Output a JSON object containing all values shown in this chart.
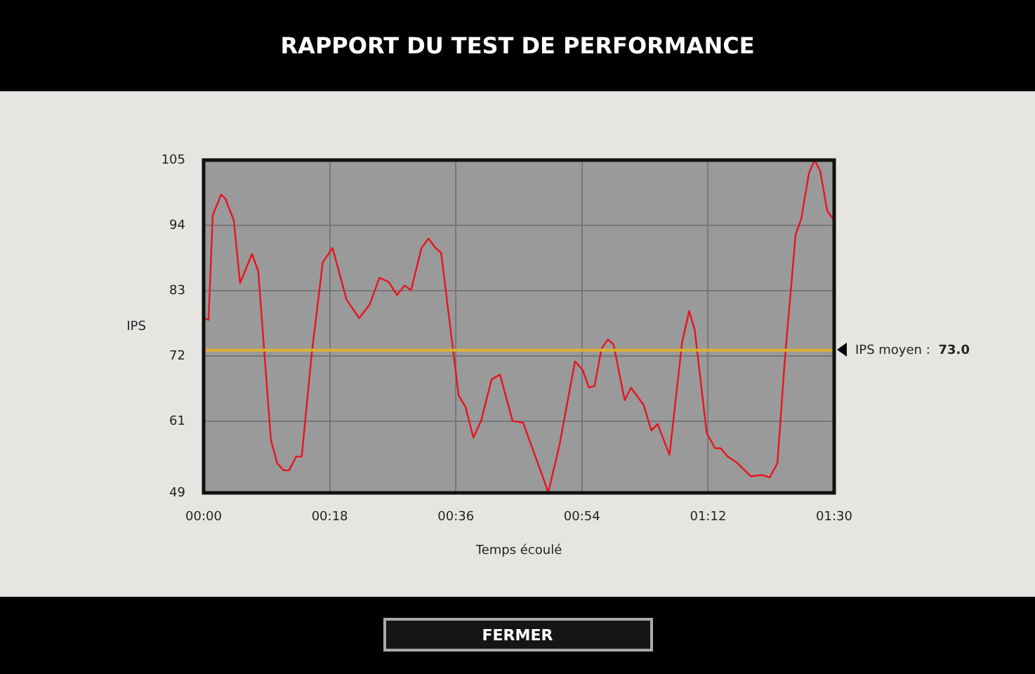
{
  "chart_data": {
    "type": "line",
    "title": "RAPPORT DU TEST DE PERFORMANCE",
    "xlabel": "Temps écoulé",
    "ylabel": "IPS",
    "x": [
      0,
      0.7,
      1.3,
      2.5,
      3.1,
      4.3,
      5.2,
      6.9,
      7.8,
      9.6,
      10.5,
      11.4,
      12.2,
      13.2,
      14.0,
      15.4,
      17.0,
      18.4,
      20.4,
      22.2,
      23.7,
      25.1,
      26.4,
      27.6,
      28.7,
      29.6,
      31.1,
      32.1,
      33.1,
      33.9,
      36.4,
      37.4,
      38.5,
      39.6,
      41.1,
      42.3,
      44.1,
      45.6,
      49.2,
      50.8,
      53.0,
      54.1,
      55.0,
      55.8,
      56.8,
      57.7,
      58.5,
      60.1,
      61.0,
      62.8,
      63.9,
      64.8,
      66.5,
      68.3,
      69.3,
      70.1,
      71.8,
      73.0,
      73.8,
      74.8,
      76.1,
      78.1,
      79.7,
      80.8,
      81.9,
      83.0,
      84.5,
      85.3,
      86.4,
      87.2,
      88.0,
      89.0,
      90.0
    ],
    "series": [
      {
        "color": "#e8141e",
        "values": [
          78.4,
          78.1,
          95.7,
          99.2,
          98.5,
          94.9,
          84.3,
          89.2,
          86.3,
          57.9,
          54.0,
          52.8,
          52.8,
          55.1,
          55.1,
          72.1,
          87.8,
          90.2,
          81.5,
          78.4,
          80.7,
          85.2,
          84.5,
          82.3,
          83.9,
          83.1,
          90.2,
          91.8,
          90.2,
          89.4,
          65.4,
          63.4,
          58.3,
          61.1,
          68.1,
          68.9,
          61.1,
          60.8,
          49.1,
          57.1,
          71.1,
          69.7,
          66.7,
          67.0,
          73.3,
          74.8,
          74.0,
          64.6,
          66.7,
          63.8,
          59.5,
          60.6,
          55.4,
          74.4,
          79.6,
          76.4,
          59.1,
          56.5,
          56.5,
          55.1,
          54.1,
          51.8,
          52.0,
          51.6,
          54.0,
          72.1,
          92.5,
          95.1,
          102.8,
          105,
          103.2,
          96.5,
          94.8
        ]
      }
    ],
    "xlim": [
      0,
      90
    ],
    "xticks": [
      {
        "value": 0,
        "label": "00:00"
      },
      {
        "value": 18,
        "label": "00:18"
      },
      {
        "value": 36,
        "label": "00:36"
      },
      {
        "value": 54,
        "label": "00:54"
      },
      {
        "value": 72,
        "label": "01:12"
      },
      {
        "value": 90,
        "label": "01:30"
      }
    ],
    "ylim": [
      49,
      105
    ],
    "yticks": [
      49,
      61,
      72,
      83,
      94,
      105
    ],
    "ref_lines": [
      {
        "axis": "y",
        "value": 73,
        "label": "IPS moyen : 73.0",
        "color": "#e0b030"
      }
    ],
    "annotations": [
      "FERMER"
    ],
    "grid": true,
    "legend": false,
    "marker": "none",
    "line_style": "solid"
  }
}
